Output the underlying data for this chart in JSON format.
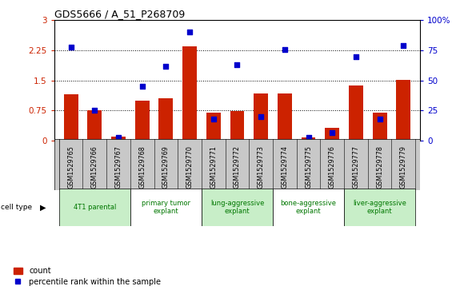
{
  "title": "GDS5666 / A_51_P268709",
  "samples": [
    "GSM1529765",
    "GSM1529766",
    "GSM1529767",
    "GSM1529768",
    "GSM1529769",
    "GSM1529770",
    "GSM1529771",
    "GSM1529772",
    "GSM1529773",
    "GSM1529774",
    "GSM1529775",
    "GSM1529776",
    "GSM1529777",
    "GSM1529778",
    "GSM1529779"
  ],
  "bar_values": [
    1.15,
    0.76,
    0.1,
    1.0,
    1.05,
    2.35,
    0.7,
    0.73,
    1.18,
    1.17,
    0.09,
    0.32,
    1.38,
    0.7,
    1.52
  ],
  "percentile_values": [
    78,
    25,
    3,
    45,
    62,
    90,
    18,
    63,
    20,
    76,
    3,
    7,
    70,
    18,
    79
  ],
  "percentile_right_axis": [
    0,
    25,
    50,
    75,
    100
  ],
  "left_yticks": [
    0,
    0.75,
    1.5,
    2.25,
    3.0
  ],
  "ylim_left": [
    0,
    3.0
  ],
  "ylim_right": [
    0,
    100
  ],
  "bar_color": "#cc2200",
  "percentile_color": "#0000cc",
  "cell_type_groups": [
    {
      "label": "4T1 parental",
      "start": 0,
      "end": 2,
      "color": "#c8eec8"
    },
    {
      "label": "primary tumor\nexplant",
      "start": 3,
      "end": 5,
      "color": "#ffffff"
    },
    {
      "label": "lung-aggressive\nexplant",
      "start": 6,
      "end": 8,
      "color": "#c8eec8"
    },
    {
      "label": "bone-aggressive\nexplant",
      "start": 9,
      "end": 11,
      "color": "#ffffff"
    },
    {
      "label": "liver-aggressive\nexplant",
      "start": 12,
      "end": 14,
      "color": "#c8eec8"
    }
  ],
  "legend_bar_label": "count",
  "legend_dot_label": "percentile rank within the sample",
  "cell_type_label": "cell type",
  "xtick_bg_color": "#c8c8c8"
}
